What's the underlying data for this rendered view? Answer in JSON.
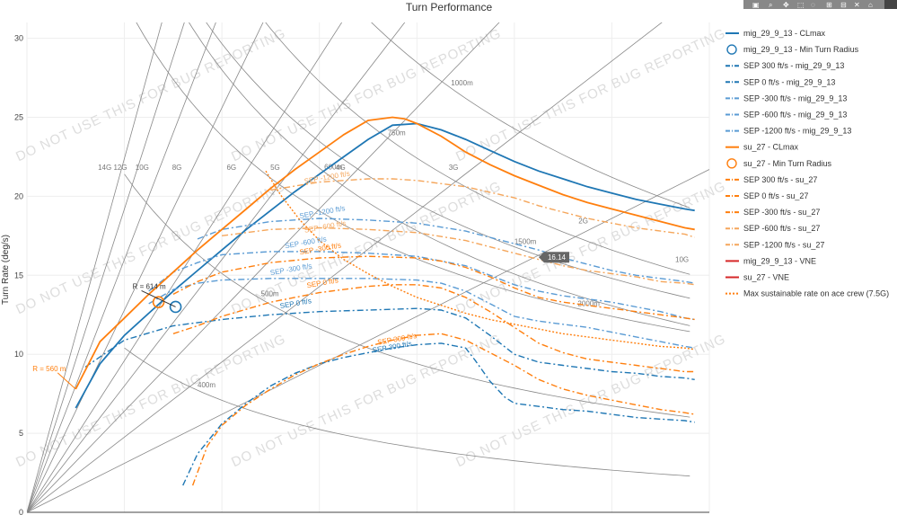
{
  "chart_data": {
    "type": "line",
    "title": "Turn Performance",
    "ylabel": "Turn Rate (deg/s)",
    "xlim": [
      0,
      1400
    ],
    "ylim": [
      0,
      31
    ],
    "yticks": [
      0,
      5,
      10,
      15,
      20,
      25,
      30
    ],
    "grid": true,
    "legend_position": "right",
    "watermark": "DO NOT USE THIS FOR BUG REPORTING",
    "colors": {
      "mig": "#1f77b4",
      "su": "#ff7f0e",
      "mig_light": "#5a9bd4",
      "su_light": "#f5a65b",
      "vne": "#d62728",
      "ref": "#888888"
    },
    "g_lines": [
      {
        "label": "2G",
        "slope": 0.0155
      },
      {
        "label": "3G",
        "slope": 0.0238
      },
      {
        "label": "4G",
        "slope": 0.032
      },
      {
        "label": "5G",
        "slope": 0.04
      },
      {
        "label": "6G",
        "slope": 0.048
      },
      {
        "label": "8G",
        "slope": 0.064
      },
      {
        "label": "10G",
        "slope": 0.08
      },
      {
        "label": "12G",
        "slope": 0.096
      },
      {
        "label": "14G",
        "slope": 0.112
      }
    ],
    "g_label_10G_right": "10G",
    "radius_curves": [
      {
        "label": "400m",
        "k": 5800
      },
      {
        "label": "500m",
        "k": 11000
      },
      {
        "label": "600m",
        "k": 19600
      },
      {
        "label": "750m",
        "k": 24000
      },
      {
        "label": "1000m",
        "k": 30000
      },
      {
        "label": "1500m",
        "k": 19500
      },
      {
        "label": "2000m",
        "k": 15000
      }
    ],
    "annotations": {
      "su_radius_label": "R = 560 m",
      "mig_radius_label": "R = 614 m",
      "hover_value": "16.14"
    },
    "series": [
      {
        "name": "mig_29_9_13 - CLmax",
        "style": "solid",
        "color": "mig",
        "x": [
          100,
          150,
          200,
          250,
          300,
          350,
          400,
          450,
          500,
          550,
          600,
          650,
          700,
          750,
          800,
          850,
          900,
          950,
          1000,
          1050,
          1100,
          1150,
          1200,
          1250,
          1300,
          1350,
          1370
        ],
        "y": [
          6.6,
          9.4,
          11.2,
          12.6,
          14.0,
          15.3,
          16.6,
          17.9,
          19.1,
          20.3,
          21.4,
          22.5,
          23.6,
          24.5,
          24.6,
          24.2,
          23.6,
          22.9,
          22.2,
          21.6,
          21.1,
          20.6,
          20.2,
          19.8,
          19.5,
          19.2,
          19.1
        ]
      },
      {
        "name": "mig_29_9_13 - Min Turn Radius",
        "style": "marker",
        "color": "mig",
        "x": [
          305
        ],
        "y": [
          13.0
        ]
      },
      {
        "name": "SEP 300 ft/s - mig_29_9_13",
        "style": "dashdot",
        "color": "mig",
        "x": [
          320,
          350,
          400,
          450,
          500,
          550,
          600,
          650,
          700,
          750,
          800,
          850,
          900,
          920,
          950,
          980,
          1000,
          1050,
          1100,
          1150,
          1200,
          1250,
          1300,
          1350,
          1370
        ],
        "y": [
          1.7,
          3.7,
          5.6,
          6.9,
          8.0,
          8.8,
          9.4,
          9.8,
          10.1,
          10.4,
          10.6,
          10.7,
          10.4,
          9.6,
          8.3,
          7.3,
          6.9,
          6.7,
          6.5,
          6.4,
          6.2,
          6.0,
          5.9,
          5.8,
          5.7
        ]
      },
      {
        "name": "SEP 0 ft/s - mig_29_9_13",
        "style": "dashdot",
        "color": "mig",
        "x": [
          120,
          200,
          300,
          400,
          500,
          600,
          700,
          800,
          850,
          900,
          950,
          1000,
          1050,
          1100,
          1150,
          1200,
          1250,
          1300,
          1350,
          1370
        ],
        "y": [
          9.2,
          10.9,
          11.8,
          12.2,
          12.5,
          12.7,
          12.8,
          12.9,
          12.8,
          12.3,
          11.2,
          10.0,
          9.5,
          9.3,
          9.1,
          8.9,
          8.8,
          8.6,
          8.5,
          8.4
        ]
      },
      {
        "name": "SEP -300 ft/s - mig_29_9_13",
        "style": "dashdot",
        "color": "mig_light",
        "x": [
          250,
          300,
          350,
          400,
          500,
          600,
          700,
          800,
          850,
          900,
          950,
          1000,
          1050,
          1100,
          1150,
          1200,
          1250,
          1300,
          1350,
          1370
        ],
        "y": [
          13.2,
          14.1,
          14.5,
          14.7,
          14.8,
          14.8,
          14.8,
          14.7,
          14.5,
          14.0,
          13.2,
          12.4,
          12.1,
          11.9,
          11.7,
          11.4,
          11.1,
          10.8,
          10.5,
          10.4
        ]
      },
      {
        "name": "SEP -600 ft/s - mig_29_9_13",
        "style": "dashdot",
        "color": "mig_light",
        "x": [
          250,
          300,
          350,
          400,
          500,
          600,
          700,
          800,
          900,
          950,
          1000,
          1050,
          1100,
          1150,
          1200,
          1250,
          1300,
          1350,
          1370
        ],
        "y": [
          14.0,
          15.2,
          15.8,
          16.3,
          16.5,
          16.5,
          16.4,
          16.2,
          15.6,
          15.0,
          14.4,
          14.0,
          13.7,
          13.5,
          13.3,
          13.0,
          12.7,
          12.3,
          12.2
        ]
      },
      {
        "name": "SEP -1200 ft/s - mig_29_9_13",
        "style": "dashdot",
        "color": "mig_light",
        "x": [
          350,
          400,
          500,
          600,
          700,
          800,
          900,
          1000,
          1050,
          1100,
          1150,
          1200,
          1250,
          1300,
          1350,
          1370
        ],
        "y": [
          17.3,
          17.9,
          18.4,
          18.6,
          18.5,
          18.3,
          17.8,
          17.0,
          16.6,
          16.1,
          15.7,
          15.3,
          15.0,
          14.8,
          14.6,
          14.5
        ]
      },
      {
        "name": "su_27 - CLmax",
        "style": "solid",
        "color": "su",
        "x": [
          100,
          150,
          200,
          250,
          300,
          350,
          400,
          450,
          500,
          550,
          600,
          650,
          700,
          750,
          775,
          800,
          850,
          900,
          950,
          1000,
          1050,
          1100,
          1150,
          1200,
          1250,
          1300,
          1350,
          1370
        ],
        "y": [
          7.8,
          10.8,
          12.3,
          13.8,
          15.2,
          16.6,
          17.9,
          19.2,
          20.5,
          21.7,
          22.8,
          23.9,
          24.8,
          25.0,
          24.9,
          24.6,
          23.8,
          22.8,
          22.0,
          21.3,
          20.7,
          20.1,
          19.6,
          19.2,
          18.8,
          18.4,
          18.0,
          17.9
        ]
      },
      {
        "name": "su_27 - Min Turn Radius",
        "style": "marker",
        "color": "su",
        "x": [
          270
        ],
        "y": [
          13.3
        ]
      },
      {
        "name": "SEP 300 ft/s - su_27",
        "style": "dashdot",
        "color": "su",
        "x": [
          340,
          370,
          400,
          450,
          500,
          550,
          600,
          650,
          700,
          750,
          800,
          850,
          900,
          950,
          1000,
          1050,
          1100,
          1150,
          1200,
          1250,
          1300,
          1350,
          1370
        ],
        "y": [
          1.7,
          4.2,
          5.5,
          6.8,
          7.8,
          8.7,
          9.4,
          10.0,
          10.5,
          10.9,
          11.2,
          11.3,
          10.9,
          10.1,
          9.3,
          8.4,
          7.8,
          7.4,
          7.1,
          6.8,
          6.5,
          6.3,
          6.2
        ]
      },
      {
        "name": "SEP 0 ft/s - su_27",
        "style": "dashdot",
        "color": "su",
        "x": [
          300,
          350,
          400,
          500,
          600,
          700,
          750,
          800,
          850,
          900,
          950,
          1000,
          1050,
          1100,
          1150,
          1200,
          1250,
          1300,
          1350,
          1370
        ],
        "y": [
          11.3,
          11.8,
          12.4,
          13.3,
          13.9,
          14.3,
          14.4,
          14.4,
          14.2,
          13.6,
          12.7,
          11.7,
          10.7,
          10.1,
          9.7,
          9.5,
          9.3,
          9.1,
          8.9,
          8.9
        ]
      },
      {
        "name": "SEP -300 ft/s - su_27",
        "style": "dashdot",
        "color": "su",
        "x": [
          300,
          350,
          400,
          500,
          600,
          700,
          800,
          850,
          900,
          950,
          1000,
          1050,
          1100,
          1150,
          1200,
          1250,
          1300,
          1350,
          1370
        ],
        "y": [
          13.8,
          14.6,
          15.2,
          15.8,
          16.1,
          16.2,
          16.1,
          15.9,
          15.5,
          14.9,
          14.2,
          13.6,
          13.3,
          13.1,
          12.9,
          12.7,
          12.5,
          12.3,
          12.2
        ]
      },
      {
        "name": "SEP -600 ft/s - su_27",
        "style": "dashdot",
        "color": "su_light",
        "x": [
          400,
          500,
          600,
          700,
          800,
          900,
          1000,
          1050,
          1100,
          1150,
          1200,
          1250,
          1300,
          1350,
          1370
        ],
        "y": [
          17.5,
          17.9,
          18.0,
          17.9,
          17.7,
          17.2,
          16.4,
          16.0,
          15.6,
          15.3,
          15.1,
          14.9,
          14.6,
          14.5,
          14.4
        ]
      },
      {
        "name": "SEP -1200 ft/s - su_27",
        "style": "dashdot",
        "color": "su_light",
        "x": [
          500,
          600,
          700,
          750,
          800,
          900,
          1000,
          1050,
          1100,
          1150,
          1200,
          1250,
          1300,
          1350,
          1370
        ],
        "y": [
          20.4,
          20.9,
          21.1,
          21.1,
          21.0,
          20.6,
          19.9,
          19.4,
          19.0,
          18.6,
          18.3,
          18.0,
          17.8,
          17.6,
          17.4
        ]
      },
      {
        "name": "mig_29_9_13 - VNE",
        "style": "solid",
        "color": "vne",
        "x": [],
        "y": []
      },
      {
        "name": "su_27 - VNE",
        "style": "solid",
        "color": "vne",
        "x": [],
        "y": []
      },
      {
        "name": "Max sustainable rate on ace crew (7.5G)",
        "style": "dot",
        "color": "su",
        "x": [
          490,
          520,
          560,
          600,
          650,
          700,
          750,
          800,
          850,
          900,
          950,
          1000,
          1050,
          1100,
          1150,
          1200,
          1250,
          1300,
          1350,
          1370
        ],
        "y": [
          21.6,
          20.1,
          18.5,
          17.2,
          16.0,
          15.1,
          14.3,
          13.6,
          13.1,
          12.6,
          12.2,
          11.9,
          11.6,
          11.3,
          11.1,
          10.9,
          10.7,
          10.5,
          10.4,
          10.3
        ]
      }
    ]
  }
}
